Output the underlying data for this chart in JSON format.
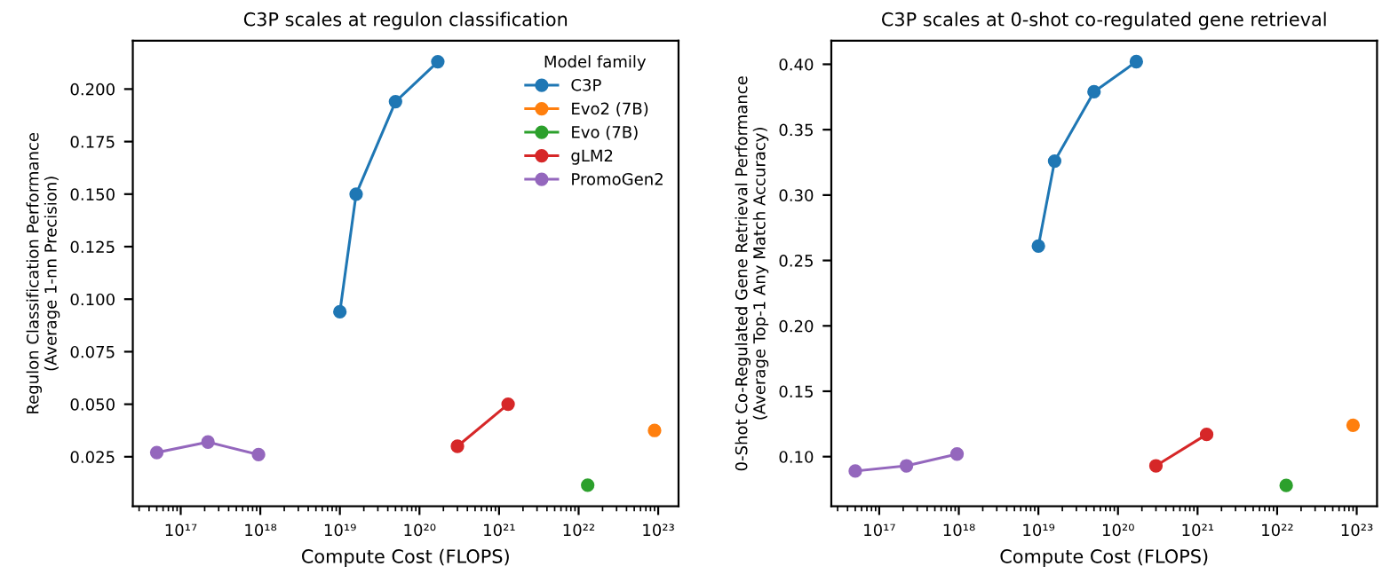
{
  "chart_data": [
    {
      "type": "line",
      "title": "C3P scales at regulon classification",
      "xlabel": "Compute Cost (FLOPS)",
      "ylabel": "Regulon Classification Performance\n(Average 1-nn Precision)",
      "legend_title": "Model family",
      "legend": "top right",
      "marker": "circle",
      "log": "x",
      "grid": false,
      "xlim": [
        2.5e+16,
        1.8e+23
      ],
      "xticks": [
        {
          "value": 1e+17,
          "label": "10¹⁷"
        },
        {
          "value": 1e+18,
          "label": "10¹⁸"
        },
        {
          "value": 1e+19,
          "label": "10¹⁹"
        },
        {
          "value": 1e+20,
          "label": "10²⁰"
        },
        {
          "value": 1e+21,
          "label": "10²¹"
        },
        {
          "value": 1e+22,
          "label": "10²²"
        },
        {
          "value": 1e+23,
          "label": "10²³"
        }
      ],
      "ylim": [
        0.0014,
        0.223
      ],
      "yticks": [
        {
          "value": 0.025,
          "label": "0.025"
        },
        {
          "value": 0.05,
          "label": "0.050"
        },
        {
          "value": 0.075,
          "label": "0.075"
        },
        {
          "value": 0.1,
          "label": "0.100"
        },
        {
          "value": 0.125,
          "label": "0.125"
        },
        {
          "value": 0.15,
          "label": "0.150"
        },
        {
          "value": 0.175,
          "label": "0.175"
        },
        {
          "value": 0.2,
          "label": "0.200"
        }
      ],
      "series": [
        {
          "name": "C3P",
          "color": "#1f77b4",
          "x": [
            1e+19,
            1.6e+19,
            5e+19,
            1.7e+20
          ],
          "values": [
            0.094,
            0.15,
            0.194,
            0.213
          ]
        },
        {
          "name": "Evo2 (7B)",
          "color": "#ff7f0e",
          "x": [
            9e+22
          ],
          "values": [
            0.0375
          ]
        },
        {
          "name": "Evo (7B)",
          "color": "#2ca02c",
          "x": [
            1.3e+22
          ],
          "values": [
            0.0115
          ]
        },
        {
          "name": "gLM2",
          "color": "#d62728",
          "x": [
            3e+20,
            1.3e+21
          ],
          "values": [
            0.03,
            0.05
          ]
        },
        {
          "name": "PromoGen2",
          "color": "#9467bd",
          "x": [
            5e+16,
            2.2e+17,
            9.5e+17
          ],
          "values": [
            0.027,
            0.032,
            0.026
          ]
        }
      ]
    },
    {
      "type": "line",
      "title": "C3P scales at 0-shot co-regulated gene retrieval",
      "xlabel": "Compute Cost (FLOPS)",
      "ylabel": "0-Shot Co-Regulated Gene Retrieval Performance\n(Average Top-1 Any Match Accuracy)",
      "marker": "circle",
      "log": "x",
      "grid": false,
      "xlim": [
        2.5e+16,
        1.8e+23
      ],
      "xticks": [
        {
          "value": 1e+17,
          "label": "10¹⁷"
        },
        {
          "value": 1e+18,
          "label": "10¹⁸"
        },
        {
          "value": 1e+19,
          "label": "10¹⁹"
        },
        {
          "value": 1e+20,
          "label": "10²⁰"
        },
        {
          "value": 1e+21,
          "label": "10²¹"
        },
        {
          "value": 1e+22,
          "label": "10²²"
        },
        {
          "value": 1e+23,
          "label": "10²³"
        }
      ],
      "ylim": [
        0.062,
        0.418
      ],
      "yticks": [
        {
          "value": 0.1,
          "label": "0.10"
        },
        {
          "value": 0.15,
          "label": "0.15"
        },
        {
          "value": 0.2,
          "label": "0.20"
        },
        {
          "value": 0.25,
          "label": "0.25"
        },
        {
          "value": 0.3,
          "label": "0.30"
        },
        {
          "value": 0.35,
          "label": "0.35"
        },
        {
          "value": 0.4,
          "label": "0.40"
        }
      ],
      "series": [
        {
          "color": "#1f77b4",
          "x": [
            1e+19,
            1.6e+19,
            5e+19,
            1.7e+20
          ],
          "values": [
            0.261,
            0.326,
            0.379,
            0.402
          ]
        },
        {
          "color": "#ff7f0e",
          "x": [
            9e+22
          ],
          "values": [
            0.124
          ]
        },
        {
          "color": "#2ca02c",
          "x": [
            1.3e+22
          ],
          "values": [
            0.078
          ]
        },
        {
          "color": "#d62728",
          "x": [
            3e+20,
            1.3e+21
          ],
          "values": [
            0.093,
            0.117
          ]
        },
        {
          "color": "#9467bd",
          "x": [
            5e+16,
            2.2e+17,
            9.5e+17
          ],
          "values": [
            0.089,
            0.093,
            0.102
          ]
        }
      ]
    }
  ]
}
